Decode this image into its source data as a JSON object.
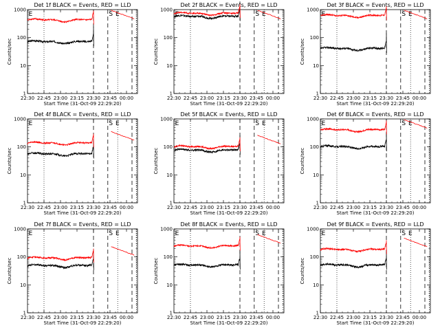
{
  "chart_data": [
    {
      "type": "line",
      "title": "Det 1f BLACK = Events, RED = LLD",
      "xlabel": "Start Time (31-Oct-09 22:29:20)",
      "ylabel": "Counts/sec",
      "yscale": "log",
      "ylim": [
        1,
        1000
      ],
      "y_ticks": [
        "1",
        "10",
        "100",
        "1000"
      ],
      "x_ticks": [
        "22:30",
        "22:45",
        "23:00",
        "23:15",
        "23:30",
        "23:45",
        "00:00"
      ],
      "markers": [
        "E",
        "S",
        "E"
      ],
      "series": [
        {
          "color": "#000000",
          "level": 70
        },
        {
          "color": "#ff0000",
          "level": 420
        }
      ]
    },
    {
      "type": "line",
      "title": "Det 2f BLACK = Events, RED = LLD",
      "xlabel": "Start Time (31-Oct-09 22:29:20)",
      "ylabel": "Counts/sec",
      "yscale": "log",
      "ylim": [
        1,
        1000
      ],
      "y_ticks": [
        "1",
        "10",
        "100",
        "1000"
      ],
      "x_ticks": [
        "22:30",
        "22:45",
        "23:00",
        "23:15",
        "23:30",
        "23:45",
        "00:00"
      ],
      "markers": [
        "E",
        "S",
        "E"
      ],
      "series": [
        {
          "color": "#000000",
          "level": 560
        },
        {
          "color": "#ff0000",
          "level": 720
        }
      ]
    },
    {
      "type": "line",
      "title": "Det 3f BLACK = Events, RED = LLD",
      "xlabel": "Start Time (31-Oct-09 22:29:20)",
      "ylabel": "Counts/sec",
      "yscale": "log",
      "ylim": [
        1,
        1000
      ],
      "y_ticks": [
        "1",
        "10",
        "100",
        "1000"
      ],
      "x_ticks": [
        "22:30",
        "22:45",
        "23:00",
        "23:15",
        "23:30",
        "23:45",
        "00:00"
      ],
      "markers": [
        "E",
        "S",
        "E"
      ],
      "series": [
        {
          "color": "#000000",
          "level": 40
        },
        {
          "color": "#ff0000",
          "level": 600
        }
      ]
    },
    {
      "type": "line",
      "title": "Det 4f BLACK = Events, RED = LLD",
      "xlabel": "Start Time (31-Oct-09 22:29:20)",
      "ylabel": "Counts/sec",
      "yscale": "log",
      "ylim": [
        1,
        1000
      ],
      "y_ticks": [
        "1",
        "10",
        "100",
        "1000"
      ],
      "x_ticks": [
        "22:30",
        "22:45",
        "23:00",
        "23:15",
        "23:30",
        "23:45",
        "00:00"
      ],
      "markers": [
        "E",
        "S",
        "E"
      ],
      "series": [
        {
          "color": "#000000",
          "level": 55
        },
        {
          "color": "#ff0000",
          "level": 135
        }
      ]
    },
    {
      "type": "line",
      "title": "Det 5f BLACK = Events, RED = LLD",
      "xlabel": "Start Time (31-Oct-09 22:29:20)",
      "ylabel": "Counts/sec",
      "yscale": "log",
      "ylim": [
        1,
        1000
      ],
      "y_ticks": [
        "1",
        "10",
        "100",
        "1000"
      ],
      "x_ticks": [
        "22:30",
        "22:45",
        "23:00",
        "23:15",
        "23:30",
        "23:45",
        "00:00"
      ],
      "markers": [
        "E",
        "S",
        "E"
      ],
      "series": [
        {
          "color": "#000000",
          "level": 75
        },
        {
          "color": "#ff0000",
          "level": 100
        }
      ]
    },
    {
      "type": "line",
      "title": "Det 6f BLACK = Events, RED = LLD",
      "xlabel": "Start Time (31-Oct-09 22:29:20)",
      "ylabel": "Counts/sec",
      "yscale": "log",
      "ylim": [
        1,
        1000
      ],
      "y_ticks": [
        "1",
        "10",
        "100",
        "1000"
      ],
      "x_ticks": [
        "22:30",
        "22:45",
        "23:00",
        "23:15",
        "23:30",
        "23:45",
        "00:00"
      ],
      "markers": [
        "E",
        "S",
        "E"
      ],
      "series": [
        {
          "color": "#000000",
          "level": 100
        },
        {
          "color": "#ff0000",
          "level": 400
        }
      ]
    },
    {
      "type": "line",
      "title": "Det 7f BLACK = Events, RED = LLD",
      "xlabel": "Start Time (31-Oct-09 22:29:20)",
      "ylabel": "Counts/sec",
      "yscale": "log",
      "ylim": [
        1,
        1000
      ],
      "y_ticks": [
        "1",
        "10",
        "100",
        "1000"
      ],
      "x_ticks": [
        "22:30",
        "22:45",
        "23:00",
        "23:15",
        "23:30",
        "23:45",
        "00:00"
      ],
      "markers": [
        "E",
        "S",
        "E"
      ],
      "series": [
        {
          "color": "#000000",
          "level": 48
        },
        {
          "color": "#ff0000",
          "level": 90
        }
      ]
    },
    {
      "type": "line",
      "title": "Det 8f BLACK = Events, RED = LLD",
      "xlabel": "Start Time (31-Oct-09 22:29:20)",
      "ylabel": "Counts/sec",
      "yscale": "log",
      "ylim": [
        1,
        1000
      ],
      "y_ticks": [
        "1",
        "10",
        "100",
        "1000"
      ],
      "x_ticks": [
        "22:30",
        "22:45",
        "23:00",
        "23:15",
        "23:30",
        "23:45",
        "00:00"
      ],
      "markers": [
        "E",
        "S",
        "E"
      ],
      "series": [
        {
          "color": "#000000",
          "level": 50
        },
        {
          "color": "#ff0000",
          "level": 240
        }
      ]
    },
    {
      "type": "line",
      "title": "Det 9f BLACK = Events, RED = LLD",
      "xlabel": "Start Time (31-Oct-09 22:29:20)",
      "ylabel": "Counts/sec",
      "yscale": "log",
      "ylim": [
        1,
        1000
      ],
      "y_ticks": [
        "1",
        "10",
        "100",
        "1000"
      ],
      "x_ticks": [
        "22:30",
        "22:45",
        "23:00",
        "23:15",
        "23:30",
        "23:45",
        "00:00"
      ],
      "markers": [
        "E",
        "S",
        "E"
      ],
      "series": [
        {
          "color": "#000000",
          "level": 50
        },
        {
          "color": "#ff0000",
          "level": 180
        }
      ]
    }
  ]
}
